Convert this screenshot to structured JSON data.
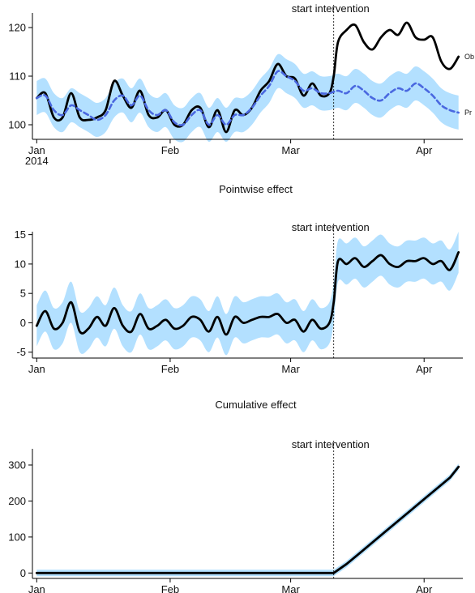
{
  "colors": {
    "band": "#b3e0ff",
    "predicted": "#4a68e0",
    "observed": "#000000",
    "axis": "#000000"
  },
  "chart_data": [
    {
      "type": "line",
      "title": "",
      "x_ticks": [
        "Jan",
        "Feb",
        "Mar",
        "Apr"
      ],
      "x_tick_days": [
        0,
        31,
        59,
        90
      ],
      "x_year_label": "2014",
      "y_ticks": [
        100,
        110,
        120
      ],
      "ylim": [
        97,
        123
      ],
      "xlim": [
        -1,
        99
      ],
      "intervention_day": 69,
      "annotation": "start intervention",
      "legend": [
        "Ob",
        "Pr"
      ],
      "series": [
        {
          "name": "Observed",
          "x": [
            0,
            2,
            4,
            6,
            8,
            10,
            12,
            14,
            16,
            18,
            20,
            22,
            24,
            26,
            28,
            30,
            32,
            34,
            36,
            38,
            40,
            42,
            44,
            46,
            48,
            50,
            52,
            54,
            56,
            58,
            60,
            62,
            64,
            66,
            68,
            69,
            70,
            72,
            74,
            76,
            78,
            80,
            82,
            84,
            86,
            88,
            90,
            92,
            94,
            96,
            98
          ],
          "y": [
            105.5,
            106.5,
            101.5,
            101.5,
            106.5,
            101.5,
            101.0,
            101.5,
            103.0,
            109.0,
            106.0,
            103.5,
            107.0,
            102.0,
            101.5,
            103.0,
            100.0,
            100.0,
            103.0,
            103.5,
            99.5,
            103.0,
            98.5,
            103.0,
            102.0,
            103.5,
            107.0,
            109.0,
            112.5,
            110.0,
            109.5,
            106.0,
            108.5,
            106.0,
            106.5,
            110.0,
            117.0,
            119.5,
            120.5,
            117.0,
            115.5,
            118.0,
            119.5,
            118.5,
            121.0,
            118.0,
            117.5,
            118.0,
            113.0,
            111.5,
            114.0
          ]
        },
        {
          "name": "Predicted",
          "x": [
            0,
            2,
            4,
            6,
            8,
            10,
            12,
            14,
            16,
            18,
            20,
            22,
            24,
            26,
            28,
            30,
            32,
            34,
            36,
            38,
            40,
            42,
            44,
            46,
            48,
            50,
            52,
            54,
            56,
            58,
            60,
            62,
            64,
            66,
            68,
            70,
            72,
            74,
            76,
            78,
            80,
            82,
            84,
            86,
            88,
            90,
            92,
            94,
            96,
            98
          ],
          "y": [
            105.5,
            106.0,
            103.0,
            102.0,
            104.0,
            103.0,
            102.0,
            101.0,
            102.0,
            105.0,
            106.0,
            104.0,
            106.0,
            103.0,
            102.0,
            103.0,
            100.5,
            100.0,
            102.0,
            103.0,
            100.0,
            102.0,
            100.0,
            102.0,
            102.0,
            103.5,
            106.0,
            108.0,
            111.0,
            110.0,
            109.0,
            107.0,
            107.5,
            106.5,
            106.5,
            107.0,
            106.5,
            108.0,
            107.0,
            105.5,
            105.0,
            106.5,
            107.5,
            107.0,
            108.5,
            107.5,
            106.0,
            104.0,
            103.0,
            102.5
          ],
          "band_width": 3.5
        }
      ]
    },
    {
      "type": "line",
      "title": "Pointwise effect",
      "x_ticks": [
        "Jan",
        "Feb",
        "Mar",
        "Apr"
      ],
      "x_tick_days": [
        0,
        31,
        59,
        90
      ],
      "y_ticks": [
        -5,
        0,
        5,
        10,
        15
      ],
      "ylim": [
        -6,
        15.5
      ],
      "xlim": [
        -1,
        99
      ],
      "intervention_day": 69,
      "annotation": "start intervention",
      "series": [
        {
          "name": "Pointwise",
          "x": [
            0,
            2,
            4,
            6,
            8,
            10,
            12,
            14,
            16,
            18,
            20,
            22,
            24,
            26,
            28,
            30,
            32,
            34,
            36,
            38,
            40,
            42,
            44,
            46,
            48,
            50,
            52,
            54,
            56,
            58,
            60,
            62,
            64,
            66,
            68,
            69,
            70,
            72,
            74,
            76,
            78,
            80,
            82,
            84,
            86,
            88,
            90,
            92,
            94,
            96,
            98
          ],
          "y": [
            -0.5,
            2.0,
            -1.0,
            0.0,
            3.5,
            -1.5,
            -1.0,
            1.0,
            -0.5,
            2.5,
            -0.5,
            -1.5,
            1.5,
            -1.0,
            -0.5,
            0.5,
            -1.0,
            -0.5,
            1.0,
            0.5,
            -1.5,
            1.0,
            -2.0,
            1.0,
            0.0,
            0.5,
            1.0,
            1.0,
            1.5,
            0.0,
            0.5,
            -1.5,
            0.5,
            -1.0,
            0.0,
            3.5,
            10.5,
            10.0,
            11.0,
            9.5,
            10.5,
            11.5,
            10.0,
            9.5,
            10.5,
            10.5,
            11.0,
            10.0,
            10.5,
            9.0,
            12.0
          ],
          "band_width": 3.5
        }
      ]
    },
    {
      "type": "line",
      "title": "Cumulative effect",
      "x_ticks": [
        "Jan",
        "Feb",
        "Mar",
        "Apr"
      ],
      "x_tick_days": [
        0,
        31,
        59,
        90
      ],
      "y_ticks": [
        0,
        100,
        200,
        300
      ],
      "ylim": [
        -15,
        345
      ],
      "xlim": [
        -1,
        99
      ],
      "intervention_day": 69,
      "annotation": "start intervention",
      "series": [
        {
          "name": "Cumulative",
          "x": [
            0,
            69,
            72,
            75,
            78,
            81,
            84,
            87,
            90,
            93,
            96,
            98
          ],
          "y": [
            0,
            0,
            25,
            55,
            85,
            115,
            145,
            175,
            205,
            235,
            265,
            295
          ],
          "band_width": 9
        }
      ]
    }
  ]
}
